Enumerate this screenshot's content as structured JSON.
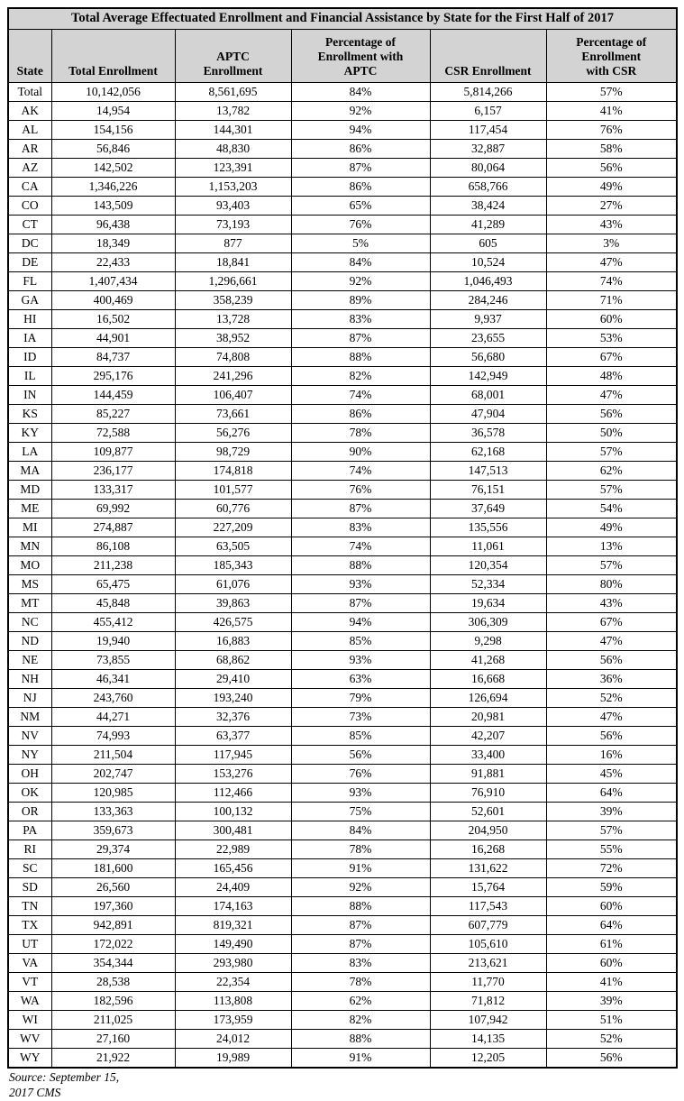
{
  "title": "Total Average Effectuated Enrollment and Financial Assistance by State for the First Half of 2017",
  "columns": [
    "State",
    "Total Enrollment",
    "APTC Enrollment",
    "Percentage of Enrollment with APTC",
    "CSR Enrollment",
    "Percentage of Enrollment with CSR"
  ],
  "rows": [
    [
      "Total",
      "10,142,056",
      "8,561,695",
      "84%",
      "5,814,266",
      "57%"
    ],
    [
      "AK",
      "14,954",
      "13,782",
      "92%",
      "6,157",
      "41%"
    ],
    [
      "AL",
      "154,156",
      "144,301",
      "94%",
      "117,454",
      "76%"
    ],
    [
      "AR",
      "56,846",
      "48,830",
      "86%",
      "32,887",
      "58%"
    ],
    [
      "AZ",
      "142,502",
      "123,391",
      "87%",
      "80,064",
      "56%"
    ],
    [
      "CA",
      "1,346,226",
      "1,153,203",
      "86%",
      "658,766",
      "49%"
    ],
    [
      "CO",
      "143,509",
      "93,403",
      "65%",
      "38,424",
      "27%"
    ],
    [
      "CT",
      "96,438",
      "73,193",
      "76%",
      "41,289",
      "43%"
    ],
    [
      "DC",
      "18,349",
      "877",
      "5%",
      "605",
      "3%"
    ],
    [
      "DE",
      "22,433",
      "18,841",
      "84%",
      "10,524",
      "47%"
    ],
    [
      "FL",
      "1,407,434",
      "1,296,661",
      "92%",
      "1,046,493",
      "74%"
    ],
    [
      "GA",
      "400,469",
      "358,239",
      "89%",
      "284,246",
      "71%"
    ],
    [
      "HI",
      "16,502",
      "13,728",
      "83%",
      "9,937",
      "60%"
    ],
    [
      "IA",
      "44,901",
      "38,952",
      "87%",
      "23,655",
      "53%"
    ],
    [
      "ID",
      "84,737",
      "74,808",
      "88%",
      "56,680",
      "67%"
    ],
    [
      "IL",
      "295,176",
      "241,296",
      "82%",
      "142,949",
      "48%"
    ],
    [
      "IN",
      "144,459",
      "106,407",
      "74%",
      "68,001",
      "47%"
    ],
    [
      "KS",
      "85,227",
      "73,661",
      "86%",
      "47,904",
      "56%"
    ],
    [
      "KY",
      "72,588",
      "56,276",
      "78%",
      "36,578",
      "50%"
    ],
    [
      "LA",
      "109,877",
      "98,729",
      "90%",
      "62,168",
      "57%"
    ],
    [
      "MA",
      "236,177",
      "174,818",
      "74%",
      "147,513",
      "62%"
    ],
    [
      "MD",
      "133,317",
      "101,577",
      "76%",
      "76,151",
      "57%"
    ],
    [
      "ME",
      "69,992",
      "60,776",
      "87%",
      "37,649",
      "54%"
    ],
    [
      "MI",
      "274,887",
      "227,209",
      "83%",
      "135,556",
      "49%"
    ],
    [
      "MN",
      "86,108",
      "63,505",
      "74%",
      "11,061",
      "13%"
    ],
    [
      "MO",
      "211,238",
      "185,343",
      "88%",
      "120,354",
      "57%"
    ],
    [
      "MS",
      "65,475",
      "61,076",
      "93%",
      "52,334",
      "80%"
    ],
    [
      "MT",
      "45,848",
      "39,863",
      "87%",
      "19,634",
      "43%"
    ],
    [
      "NC",
      "455,412",
      "426,575",
      "94%",
      "306,309",
      "67%"
    ],
    [
      "ND",
      "19,940",
      "16,883",
      "85%",
      "9,298",
      "47%"
    ],
    [
      "NE",
      "73,855",
      "68,862",
      "93%",
      "41,268",
      "56%"
    ],
    [
      "NH",
      "46,341",
      "29,410",
      "63%",
      "16,668",
      "36%"
    ],
    [
      "NJ",
      "243,760",
      "193,240",
      "79%",
      "126,694",
      "52%"
    ],
    [
      "NM",
      "44,271",
      "32,376",
      "73%",
      "20,981",
      "47%"
    ],
    [
      "NV",
      "74,993",
      "63,377",
      "85%",
      "42,207",
      "56%"
    ],
    [
      "NY",
      "211,504",
      "117,945",
      "56%",
      "33,400",
      "16%"
    ],
    [
      "OH",
      "202,747",
      "153,276",
      "76%",
      "91,881",
      "45%"
    ],
    [
      "OK",
      "120,985",
      "112,466",
      "93%",
      "76,910",
      "64%"
    ],
    [
      "OR",
      "133,363",
      "100,132",
      "75%",
      "52,601",
      "39%"
    ],
    [
      "PA",
      "359,673",
      "300,481",
      "84%",
      "204,950",
      "57%"
    ],
    [
      "RI",
      "29,374",
      "22,989",
      "78%",
      "16,268",
      "55%"
    ],
    [
      "SC",
      "181,600",
      "165,456",
      "91%",
      "131,622",
      "72%"
    ],
    [
      "SD",
      "26,560",
      "24,409",
      "92%",
      "15,764",
      "59%"
    ],
    [
      "TN",
      "197,360",
      "174,163",
      "88%",
      "117,543",
      "60%"
    ],
    [
      "TX",
      "942,891",
      "819,321",
      "87%",
      "607,779",
      "64%"
    ],
    [
      "UT",
      "172,022",
      "149,490",
      "87%",
      "105,610",
      "61%"
    ],
    [
      "VA",
      "354,344",
      "293,980",
      "83%",
      "213,621",
      "60%"
    ],
    [
      "VT",
      "28,538",
      "22,354",
      "78%",
      "11,770",
      "41%"
    ],
    [
      "WA",
      "182,596",
      "113,808",
      "62%",
      "71,812",
      "39%"
    ],
    [
      "WI",
      "211,025",
      "173,959",
      "82%",
      "107,942",
      "51%"
    ],
    [
      "WV",
      "27,160",
      "24,012",
      "88%",
      "14,135",
      "52%"
    ],
    [
      "WY",
      "21,922",
      "19,989",
      "91%",
      "12,205",
      "56%"
    ]
  ],
  "source_note": {
    "line1": "Source: September 15,",
    "line2": "2017 CMS"
  },
  "colors": {
    "header_background": "#d3d3d3",
    "border": "#000000",
    "row_background": "#ffffff",
    "text": "#000000"
  }
}
